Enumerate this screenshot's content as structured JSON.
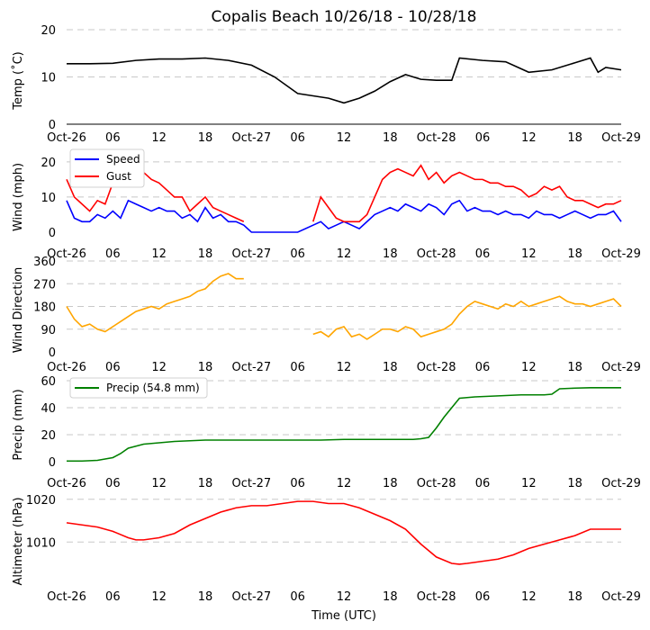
{
  "title": "Copalis Beach 10/26/18 - 10/28/18",
  "xlabel": "Time (UTC)",
  "x_ticks": [
    "Oct-26",
    "06",
    "12",
    "18",
    "Oct-27",
    "06",
    "12",
    "18",
    "Oct-28",
    "06",
    "12",
    "18",
    "Oct-29"
  ],
  "colors": {
    "temp": "#000000",
    "speed": "#0000ff",
    "gust": "#ff0000",
    "direction": "#ffa500",
    "precip": "#008000",
    "altimeter": "#ff0000"
  },
  "chart_data": [
    {
      "type": "line",
      "id": "temp",
      "ylabel": "Temp (˚C)",
      "ylim": [
        0,
        20
      ],
      "yticks": [
        "0",
        "10",
        "20"
      ],
      "series": [
        {
          "name": "Temp",
          "color": "#000000",
          "x": [
            0,
            3,
            6,
            9,
            12,
            15,
            18,
            21,
            24,
            27,
            30,
            32,
            34,
            36,
            38,
            40,
            42,
            44,
            46,
            48,
            50,
            51,
            54,
            57,
            60,
            63,
            66,
            68,
            69,
            70,
            72
          ],
          "y": [
            12.8,
            12.8,
            12.9,
            13.5,
            13.8,
            13.8,
            14,
            13.5,
            12.5,
            10,
            6.5,
            6,
            5.5,
            4.5,
            5.5,
            7,
            9,
            10.5,
            9.5,
            9.3,
            9.3,
            14,
            13.5,
            13.2,
            11,
            11.5,
            13,
            14,
            11,
            12,
            11.5
          ]
        }
      ]
    },
    {
      "type": "line",
      "id": "wind",
      "ylabel": "Wind (mph)",
      "ylim": [
        0,
        22
      ],
      "yticks": [
        "0",
        "10",
        "20"
      ],
      "legend": [
        "Speed",
        "Gust"
      ],
      "series": [
        {
          "name": "Speed",
          "color": "#0000ff",
          "x": [
            0,
            1,
            2,
            3,
            4,
            5,
            6,
            7,
            8,
            9,
            10,
            11,
            12,
            13,
            14,
            15,
            16,
            17,
            18,
            19,
            20,
            21,
            22,
            23,
            24,
            27,
            30,
            32,
            33,
            34,
            35,
            36,
            37,
            38,
            39,
            40,
            41,
            42,
            43,
            44,
            45,
            46,
            47,
            48,
            49,
            50,
            51,
            52,
            53,
            54,
            55,
            56,
            57,
            58,
            59,
            60,
            61,
            62,
            63,
            64,
            65,
            66,
            67,
            68,
            69,
            70,
            71,
            72
          ],
          "y": [
            9,
            4,
            3,
            3,
            5,
            4,
            6,
            4,
            9,
            8,
            7,
            6,
            7,
            6,
            6,
            4,
            5,
            3,
            7,
            4,
            5,
            3,
            3,
            2,
            0,
            0,
            0,
            2,
            3,
            1,
            2,
            3,
            2,
            1,
            3,
            5,
            6,
            7,
            6,
            8,
            7,
            6,
            8,
            7,
            5,
            8,
            9,
            6,
            7,
            6,
            6,
            5,
            6,
            5,
            5,
            4,
            6,
            5,
            5,
            4,
            5,
            6,
            5,
            4,
            5,
            5,
            6,
            3
          ]
        },
        {
          "name": "Gust",
          "color": "#ff0000",
          "x": [
            0,
            1,
            2,
            3,
            4,
            5,
            6,
            7,
            8,
            9,
            10,
            11,
            12,
            13,
            14,
            15,
            16,
            17,
            18,
            19,
            20,
            21,
            22,
            23,
            32,
            33,
            34,
            35,
            36,
            37,
            38,
            39,
            40,
            41,
            42,
            43,
            44,
            45,
            46,
            47,
            48,
            49,
            50,
            51,
            52,
            53,
            54,
            55,
            56,
            57,
            58,
            59,
            60,
            61,
            62,
            63,
            64,
            65,
            66,
            67,
            68,
            69,
            70,
            71,
            72
          ],
          "y": [
            15,
            10,
            8,
            6,
            9,
            8,
            14,
            17,
            18,
            19,
            17,
            15,
            14,
            12,
            10,
            10,
            6,
            8,
            10,
            7,
            6,
            5,
            4,
            3,
            3,
            10,
            7,
            4,
            3,
            3,
            3,
            5,
            10,
            15,
            17,
            18,
            17,
            16,
            19,
            15,
            17,
            14,
            16,
            17,
            16,
            15,
            15,
            14,
            14,
            13,
            13,
            12,
            10,
            11,
            13,
            12,
            13,
            10,
            9,
            9,
            8,
            7,
            8,
            8,
            9
          ]
        }
      ]
    },
    {
      "type": "line",
      "id": "direction",
      "ylabel": "Wind Direction",
      "ylim": [
        0,
        360
      ],
      "yticks": [
        "0",
        "90",
        "180",
        "270",
        "360"
      ],
      "series": [
        {
          "name": "Direction",
          "color": "#ffa500",
          "x": [
            0,
            1,
            2,
            3,
            4,
            5,
            6,
            7,
            8,
            9,
            10,
            11,
            12,
            13,
            14,
            15,
            16,
            17,
            18,
            19,
            20,
            21,
            22,
            23,
            32,
            33,
            34,
            35,
            36,
            37,
            38,
            39,
            40,
            41,
            42,
            43,
            44,
            45,
            46,
            47,
            48,
            49,
            50,
            51,
            52,
            53,
            54,
            55,
            56,
            57,
            58,
            59,
            60,
            61,
            62,
            63,
            64,
            65,
            66,
            67,
            68,
            69,
            70,
            71,
            72
          ],
          "y": [
            180,
            130,
            100,
            110,
            90,
            80,
            100,
            120,
            140,
            160,
            170,
            180,
            170,
            190,
            200,
            210,
            220,
            240,
            250,
            280,
            300,
            310,
            290,
            290,
            70,
            80,
            60,
            90,
            100,
            60,
            70,
            50,
            70,
            90,
            90,
            80,
            100,
            90,
            60,
            70,
            80,
            90,
            110,
            150,
            180,
            200,
            190,
            180,
            170,
            190,
            180,
            200,
            180,
            190,
            200,
            210,
            220,
            200,
            190,
            190,
            180,
            190,
            200,
            210,
            180
          ]
        }
      ]
    },
    {
      "type": "line",
      "id": "precip",
      "ylabel": "Precip (mm)",
      "ylim": [
        0,
        60
      ],
      "yticks": [
        "0",
        "20",
        "40",
        "60"
      ],
      "legend": [
        "Precip (54.8 mm)"
      ],
      "series": [
        {
          "name": "Precip (54.8 mm)",
          "color": "#008000",
          "x": [
            0,
            2,
            4,
            5,
            6,
            7,
            8,
            10,
            12,
            14,
            16,
            18,
            20,
            22,
            24,
            27,
            30,
            33,
            36,
            39,
            42,
            45,
            46,
            47,
            48,
            49,
            50,
            51,
            53,
            55,
            57,
            59,
            60,
            62,
            63,
            64,
            66,
            68,
            70,
            72
          ],
          "y": [
            0.5,
            0.5,
            1,
            2,
            3,
            6,
            10,
            13,
            14,
            15,
            15.5,
            16,
            16,
            16,
            16,
            16,
            16,
            16,
            16.5,
            16.5,
            16.5,
            16.5,
            17,
            18,
            25,
            33,
            40,
            47,
            48,
            48.5,
            49,
            49.5,
            49.5,
            49.5,
            50,
            54,
            54.5,
            54.8,
            54.8,
            54.8
          ]
        }
      ]
    },
    {
      "type": "line",
      "id": "altimeter",
      "ylabel": "Altimeter (hPa)",
      "ylim": [
        1001,
        1021
      ],
      "yticks": [
        "1010",
        "1020"
      ],
      "series": [
        {
          "name": "Altimeter",
          "color": "#ff0000",
          "x": [
            0,
            2,
            4,
            6,
            8,
            9,
            10,
            12,
            14,
            16,
            18,
            20,
            22,
            24,
            26,
            28,
            30,
            32,
            34,
            36,
            38,
            40,
            42,
            44,
            46,
            47,
            48,
            50,
            51,
            52,
            54,
            56,
            58,
            60,
            62,
            64,
            66,
            68,
            70,
            72
          ],
          "y": [
            1014.5,
            1014,
            1013.5,
            1012.5,
            1011,
            1010.5,
            1010.5,
            1011,
            1012,
            1014,
            1015.5,
            1017,
            1018,
            1018.5,
            1018.5,
            1019,
            1019.5,
            1019.5,
            1019,
            1019,
            1018,
            1016.5,
            1015,
            1013,
            1009.5,
            1008,
            1006.5,
            1005,
            1004.8,
            1005,
            1005.5,
            1006,
            1007,
            1008.5,
            1009.5,
            1010.5,
            1011.5,
            1013,
            1013,
            1013
          ]
        }
      ]
    }
  ]
}
